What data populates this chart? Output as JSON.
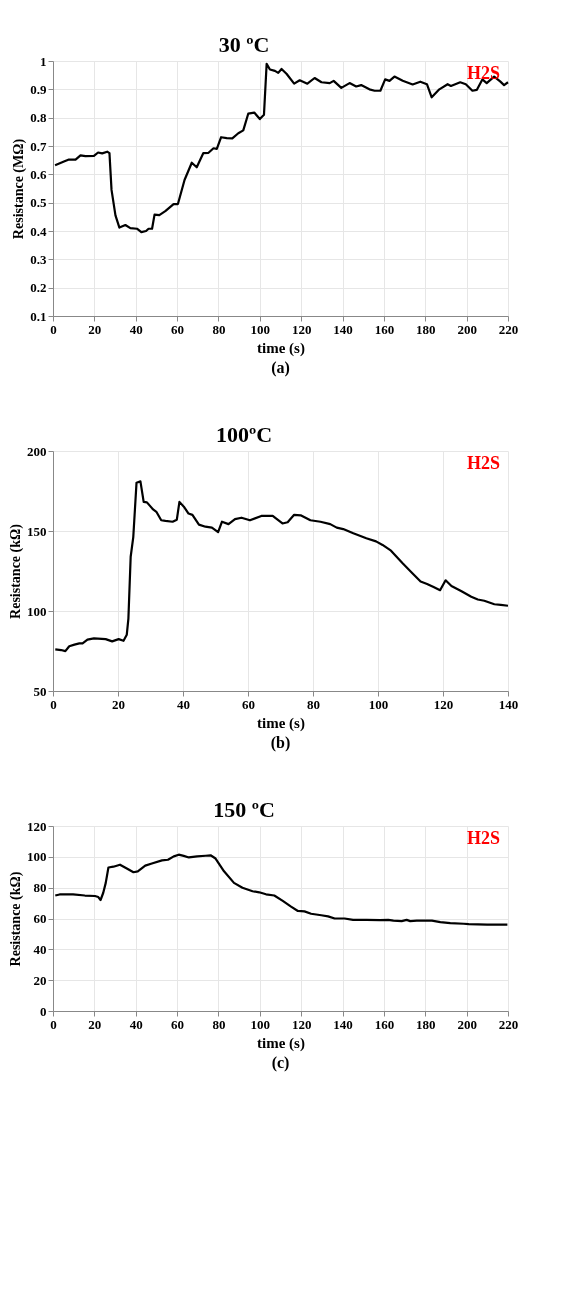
{
  "chart_data": [
    {
      "type": "line",
      "title": "30 ºC",
      "ylabel": "Resistance (MΩ)",
      "xlabel": "time (s)",
      "annotations": [
        "H2S",
        "(a)"
      ],
      "grid": true,
      "marker": "none",
      "line_style": "solid",
      "xlim": [
        0,
        220
      ],
      "xticks": [
        0,
        20,
        40,
        60,
        80,
        100,
        120,
        140,
        160,
        180,
        200,
        220
      ],
      "ylim": [
        0.1,
        1
      ],
      "yticks": [
        0.1,
        0.2,
        0.3,
        0.4,
        0.5,
        0.6,
        0.7,
        0.8,
        0.9,
        1
      ],
      "series": [
        {
          "color": "#000000",
          "x": [
            1,
            5.3,
            7.7,
            10.9,
            13.3,
            15.7,
            19.8,
            21.8,
            23.8,
            26.2,
            27.3,
            28.3,
            30.2,
            32.1,
            35,
            37.4,
            40.6,
            42.7,
            45,
            46.2,
            47.9,
            49.1,
            51.4,
            54.3,
            58.3,
            60.4,
            63.6,
            67.1,
            69.5,
            72.7,
            75.2,
            77.6,
            79.2,
            81.3,
            84,
            86.7,
            89.6,
            92,
            94.4,
            97.3,
            100,
            102,
            103.3,
            104.9,
            107.3,
            108.9,
            110.5,
            112.9,
            116.6,
            119.3,
            123,
            126.5,
            129.8,
            133.8,
            135.7,
            139.4,
            143.4,
            146.6,
            149,
            153,
            155.5,
            158.3,
            160.6,
            162.7,
            165.1,
            169.1,
            173.9,
            177.6,
            180.8,
            183.1,
            186.8,
            190.8,
            192.4,
            196.9,
            199.6,
            202.8,
            204.9,
            207.6,
            209.7,
            213.3,
            216.2,
            218.1,
            220
          ],
          "values": [
            0.632,
            0.645,
            0.652,
            0.652,
            0.667,
            0.664,
            0.665,
            0.677,
            0.674,
            0.68,
            0.675,
            0.545,
            0.455,
            0.412,
            0.421,
            0.41,
            0.408,
            0.396,
            0.4,
            0.408,
            0.408,
            0.458,
            0.456,
            0.47,
            0.495,
            0.495,
            0.58,
            0.641,
            0.625,
            0.675,
            0.676,
            0.692,
            0.69,
            0.731,
            0.728,
            0.727,
            0.745,
            0.755,
            0.814,
            0.818,
            0.795,
            0.81,
            0.99,
            0.97,
            0.965,
            0.958,
            0.972,
            0.955,
            0.92,
            0.932,
            0.92,
            0.94,
            0.925,
            0.922,
            0.93,
            0.905,
            0.922,
            0.91,
            0.915,
            0.9,
            0.895,
            0.895,
            0.935,
            0.93,
            0.945,
            0.93,
            0.917,
            0.927,
            0.918,
            0.872,
            0.9,
            0.918,
            0.912,
            0.925,
            0.918,
            0.895,
            0.898,
            0.935,
            0.922,
            0.945,
            0.928,
            0.915,
            0.925
          ]
        }
      ]
    },
    {
      "type": "line",
      "title": "100ºC",
      "ylabel": "Resistance (kΩ)",
      "xlabel": "time (s)",
      "annotations": [
        "H2S",
        "(b)"
      ],
      "grid": true,
      "marker": "none",
      "line_style": "solid",
      "xlim": [
        0,
        140
      ],
      "xticks": [
        0,
        20,
        40,
        60,
        80,
        100,
        120,
        140
      ],
      "ylim": [
        50,
        200
      ],
      "yticks": [
        50,
        100,
        150,
        200
      ],
      "series": [
        {
          "color": "#000000",
          "x": [
            0.7,
            2.5,
            3.8,
            5,
            6.6,
            8.1,
            9.1,
            10.6,
            12.6,
            16.2,
            18.2,
            20.2,
            21.7,
            22.7,
            23.2,
            23.9,
            24.7,
            25.7,
            26.9,
            27.9,
            28.9,
            30.8,
            31.8,
            33.3,
            34.6,
            36.8,
            38.1,
            38.9,
            40.4,
            41.7,
            42.9,
            44.9,
            46.9,
            48.9,
            50.8,
            52,
            54,
            56,
            58,
            60.6,
            64.1,
            67.6,
            70.6,
            72.2,
            74.2,
            76.2,
            79.2,
            82.3,
            85.3,
            87.3,
            89.3,
            92.4,
            96.4,
            99.4,
            101.4,
            104,
            107.5,
            110.5,
            113.1,
            115.1,
            117.1,
            119.1,
            120.8,
            122.6,
            125.7,
            128.7,
            130.7,
            132.7,
            135.8,
            137.8,
            140
          ],
          "values": [
            76,
            75.6,
            74.9,
            78,
            79,
            79.8,
            79.8,
            82.1,
            82.9,
            82.4,
            81,
            82.4,
            81.4,
            85.2,
            95.3,
            133.9,
            146.2,
            180.2,
            181,
            168.2,
            167.9,
            163.5,
            162,
            156.7,
            156.3,
            155.8,
            157.1,
            168.2,
            164.8,
            160.9,
            160.1,
            154,
            152.7,
            152.1,
            149.3,
            155.8,
            154.3,
            157.4,
            158.3,
            156.7,
            159.4,
            159.4,
            154.7,
            155.5,
            160.1,
            159.8,
            156.7,
            155.8,
            154.3,
            152.1,
            151.2,
            148.6,
            145.5,
            143.5,
            141.3,
            137.7,
            130,
            123.8,
            118.4,
            116.9,
            115,
            113,
            119.2,
            115.6,
            112.3,
            108.9,
            107.2,
            106.4,
            104.2,
            103.8,
            103.3
          ]
        }
      ]
    },
    {
      "type": "line",
      "title": "150 ºC",
      "ylabel": "Resistance (kΩ)",
      "xlabel": "time (s)",
      "annotations": [
        "H2S",
        "(c)"
      ],
      "grid": true,
      "marker": "none",
      "line_style": "solid",
      "xlim": [
        0,
        220
      ],
      "xticks": [
        0,
        20,
        40,
        60,
        80,
        100,
        120,
        140,
        160,
        180,
        200,
        220
      ],
      "ylim": [
        0,
        120
      ],
      "yticks": [
        0,
        20,
        40,
        60,
        80,
        100,
        120
      ],
      "series": [
        {
          "color": "#000000",
          "x": [
            1.1,
            3.2,
            9.7,
            15.4,
            20.3,
            21.9,
            23,
            24.3,
            25.5,
            26.8,
            29.2,
            32.4,
            35.7,
            38.9,
            41,
            44.6,
            47.8,
            52.7,
            55.6,
            58.4,
            60.8,
            63.2,
            65.7,
            69.7,
            73.8,
            76.2,
            78.6,
            82.7,
            87.5,
            91.6,
            96.5,
            99.7,
            103,
            107,
            111.1,
            115.1,
            118.4,
            121.6,
            124.8,
            129.7,
            133,
            136.2,
            141,
            145.1,
            151.6,
            158.1,
            162.1,
            164.6,
            168.6,
            171,
            172.7,
            175.9,
            183.2,
            187.3,
            192.1,
            198.6,
            201,
            209.9,
            219.7
          ],
          "values": [
            74.9,
            75.6,
            75.6,
            74.9,
            74.6,
            73.9,
            72,
            76.7,
            83.1,
            93.1,
            93.6,
            94.9,
            92.4,
            90,
            90.6,
            94.3,
            95.7,
            97.7,
            98.1,
            100.3,
            101.4,
            100.6,
            99.6,
            100.3,
            100.7,
            101,
            98.9,
            90.6,
            83.1,
            79.9,
            77.7,
            77,
            75.7,
            74.9,
            71.4,
            67.7,
            64.9,
            64.6,
            63.1,
            62.1,
            61.4,
            60,
            60,
            59.1,
            59.1,
            58.9,
            59.1,
            58.6,
            58.3,
            59.1,
            58.3,
            58.6,
            58.6,
            57.7,
            57,
            56.6,
            56.3,
            56,
            56
          ]
        }
      ]
    }
  ]
}
